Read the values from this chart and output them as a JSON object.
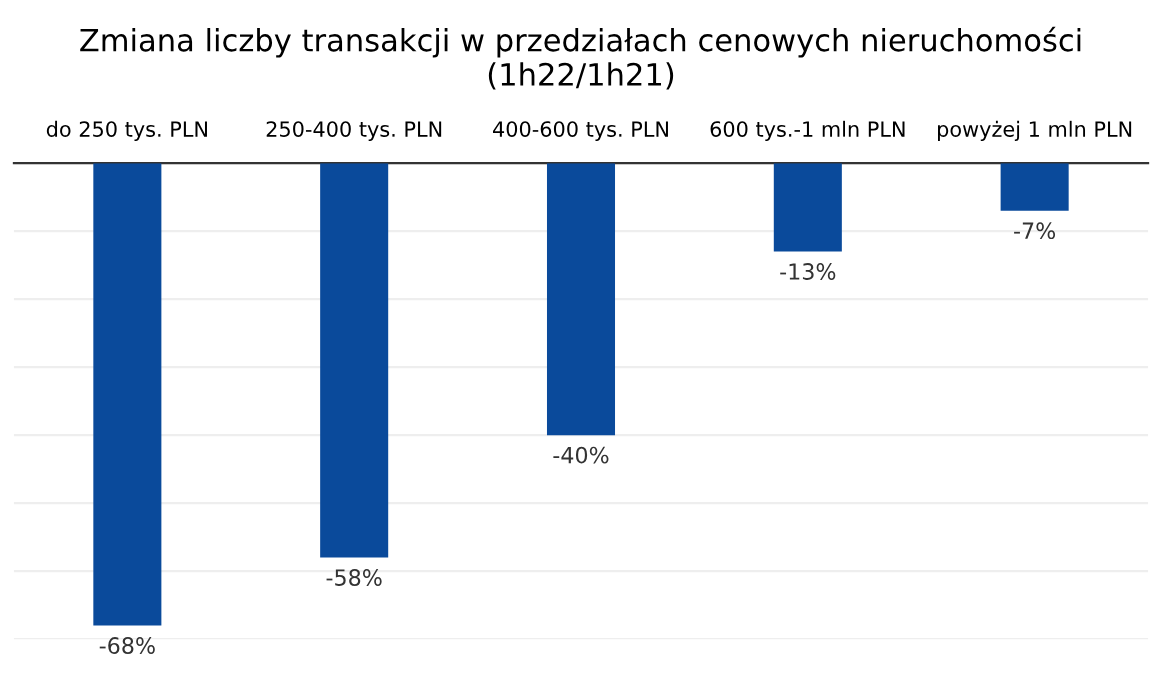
{
  "chart_data": {
    "type": "bar",
    "title": "Zmiana liczby transakcji w przedziałach cenowych nieruchomości\n(1h22/1h21)",
    "categories": [
      "do 250 tys. PLN",
      "250-400 tys. PLN",
      "400-600 tys. PLN",
      "600 tys.-1 mln PLN",
      "powyżej 1 mln PLN"
    ],
    "values": [
      -68,
      -58,
      -40,
      -13,
      -7
    ],
    "value_labels": [
      "-68%",
      "-58%",
      "-40%",
      "-13%",
      "-7%"
    ],
    "color": "#0a4a9b",
    "ylim": [
      -70,
      0
    ],
    "yticks": [
      {
        "value": -70,
        "label": null
      },
      {
        "value": -60,
        "label": null
      },
      {
        "value": -50,
        "label": null
      },
      {
        "value": -40,
        "label": null
      },
      {
        "value": -30,
        "label": null
      },
      {
        "value": -20,
        "label": null
      },
      {
        "value": -10,
        "label": null
      },
      {
        "value": 0,
        "label": null
      }
    ],
    "tick_labels": "x",
    "grid": "y"
  }
}
